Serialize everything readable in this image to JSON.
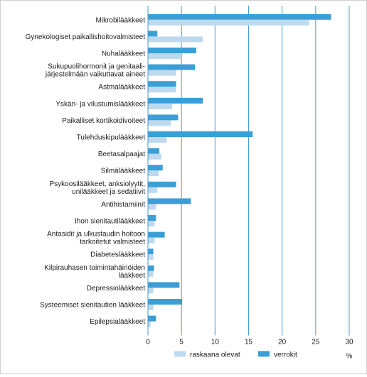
{
  "chart_data": {
    "type": "bar",
    "orientation": "horizontal",
    "categories": [
      "Mikrobilääkkeet",
      "Gynekologiset paikallishoitovalmisteet",
      "Nuhalääkkeet",
      "Sukupuolihormonit ja genitaali-\njärjestelmään vaikuttavat aineet",
      "Astmalääkkeet",
      "Yskän- ja vilustumislääkkeet",
      "Paikalliset kortikoidivoiteet",
      "Tulehduskipulääkkeet",
      "Beetasalpaajat",
      "Silmälääkkeet",
      "Psykoosilääkkeet, anksiolyytit,\nunilääkkeet ja sedatiivit",
      "Antihistamiinit",
      "Ihon sienitautilääkkeet",
      "Antasidit ja ulkustaudin hoitoon\ntarkoitetut valmisteet",
      "Diabeteslääkkeet",
      "Kilpirauhasen toimintahäiriöiden\nlääkkeet",
      "Depressiolääkkeet",
      "Systeemiset sienitautien lääkkeet",
      "Epilepsialääkkeet"
    ],
    "series": [
      {
        "name": "raskaana olevat",
        "color": "#bcd9ef",
        "values": [
          24.0,
          8.2,
          5.0,
          4.2,
          4.2,
          3.6,
          3.4,
          2.8,
          2.0,
          1.6,
          1.4,
          1.2,
          1.0,
          1.0,
          0.8,
          0.8,
          0.8,
          0.8,
          0.4
        ]
      },
      {
        "name": "verrokit",
        "color": "#3a9fd6",
        "values": [
          27.3,
          1.4,
          7.2,
          7.0,
          4.2,
          8.2,
          4.5,
          15.6,
          1.7,
          2.2,
          4.2,
          6.4,
          1.2,
          2.5,
          0.8,
          0.9,
          4.7,
          5.1,
          1.2
        ]
      }
    ],
    "xlim": [
      0,
      30
    ],
    "xticks": [
      "0",
      "5",
      "10",
      "15",
      "20",
      "25",
      "30"
    ],
    "unit_label": "%",
    "grid": true,
    "legend_position": "bottom"
  }
}
